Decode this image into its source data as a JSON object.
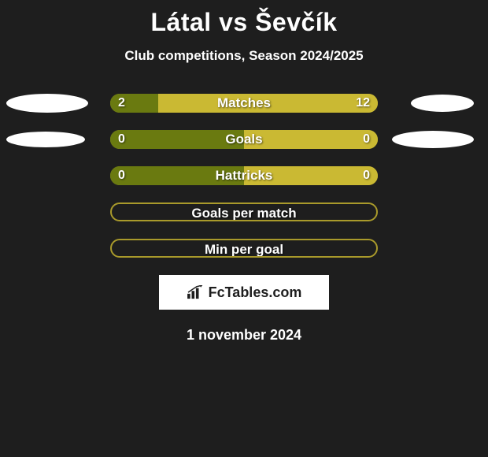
{
  "background_color": "#1e1e1e",
  "title": "Látal vs Ševčík",
  "title_fontsize": 32,
  "title_color": "#ffffff",
  "subtitle": "Club competitions, Season 2024/2025",
  "subtitle_fontsize": 17,
  "subtitle_color": "#ffffff",
  "bar_track_color": "#a99a2b",
  "bar_border_color": "#a99a2b",
  "left_player_color": "#6a7a10",
  "right_player_color": "#cab933",
  "ellipse_color": "#ffffff",
  "label_color": "#ffffff",
  "value_text_color": "#ffffff",
  "text_shadow": "1px 1px 2px rgba(0,0,0,0.6)",
  "rows": [
    {
      "label": "Matches",
      "left_value": "2",
      "right_value": "12",
      "left_pct": 18,
      "right_pct": 82,
      "show_left_ellipse": true,
      "show_right_ellipse": true,
      "left_ellipse_w": 104,
      "left_ellipse_h": 24,
      "right_ellipse_w": 80,
      "right_ellipse_h": 22,
      "border_only": false,
      "value_text_color": "#ffffff"
    },
    {
      "label": "Goals",
      "left_value": "0",
      "right_value": "0",
      "left_pct": 50,
      "right_pct": 50,
      "show_left_ellipse": true,
      "show_right_ellipse": true,
      "left_ellipse_w": 100,
      "left_ellipse_h": 20,
      "right_ellipse_w": 104,
      "right_ellipse_h": 22,
      "border_only": false,
      "value_text_color": "#ffffff"
    },
    {
      "label": "Hattricks",
      "left_value": "0",
      "right_value": "0",
      "left_pct": 50,
      "right_pct": 50,
      "show_left_ellipse": false,
      "show_right_ellipse": false,
      "border_only": false,
      "value_text_color": "#ffffff"
    },
    {
      "label": "Goals per match",
      "left_value": "",
      "right_value": "",
      "left_pct": 0,
      "right_pct": 0,
      "show_left_ellipse": false,
      "show_right_ellipse": false,
      "border_only": true
    },
    {
      "label": "Min per goal",
      "left_value": "",
      "right_value": "",
      "left_pct": 0,
      "right_pct": 0,
      "show_left_ellipse": false,
      "show_right_ellipse": false,
      "border_only": true
    }
  ],
  "brand": {
    "text": "FcTables.com",
    "box_bg": "#ffffff",
    "text_color": "#1e1e1e",
    "icon_color": "#1e1e1e"
  },
  "date": "1 november 2024",
  "date_color": "#ffffff",
  "date_fontsize": 18
}
